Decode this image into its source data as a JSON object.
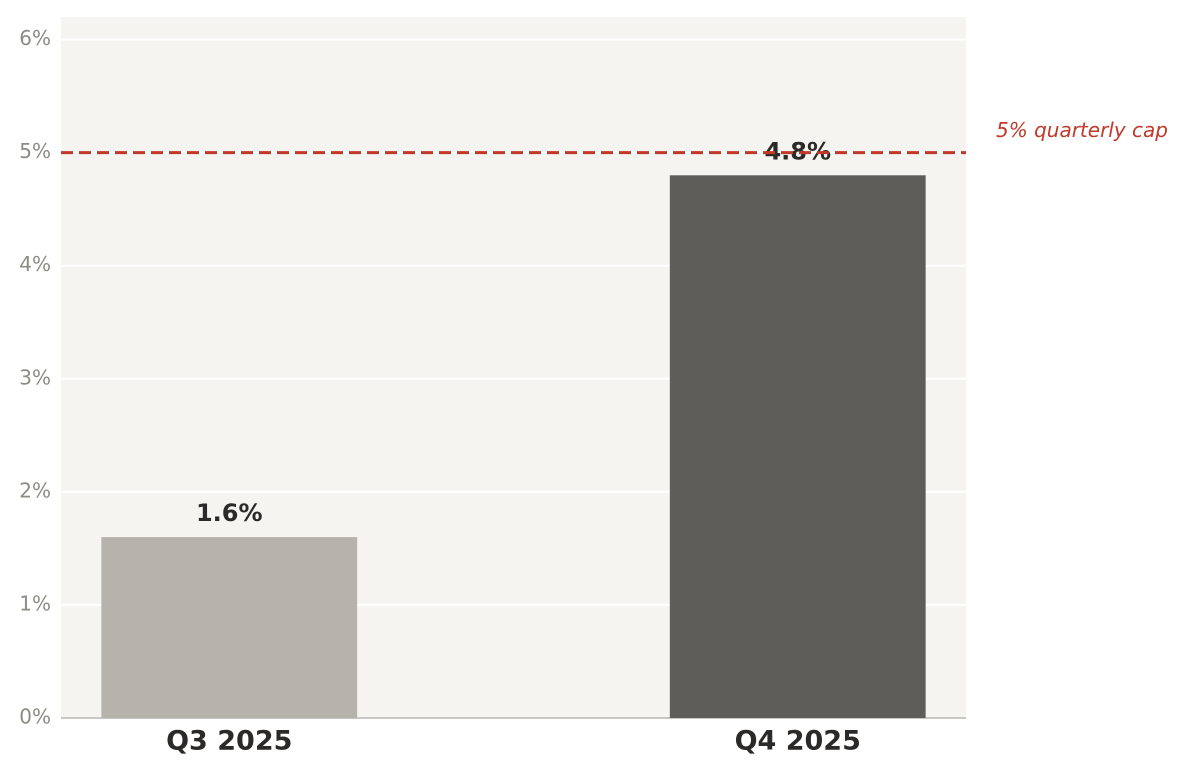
{
  "chart_data": {
    "type": "bar",
    "categories": [
      "Q3 2025",
      "Q4 2025"
    ],
    "values": [
      1.6,
      4.8
    ],
    "value_labels": [
      "1.6%",
      "4.8%"
    ],
    "colors": [
      "#b5b3ab",
      "#5e5d59"
    ],
    "ylim": [
      0,
      6.2
    ],
    "yticks": [
      {
        "value": 0,
        "label": "0%"
      },
      {
        "value": 1,
        "label": "1%"
      },
      {
        "value": 2,
        "label": "2%"
      },
      {
        "value": 3,
        "label": "3%"
      },
      {
        "value": 4,
        "label": "4%"
      },
      {
        "value": 5,
        "label": "5%"
      },
      {
        "value": 6,
        "label": "6%"
      }
    ],
    "grid": true,
    "reference_line": {
      "value": 5,
      "label": "5% quarterly cap",
      "color": "#c0392b"
    }
  }
}
